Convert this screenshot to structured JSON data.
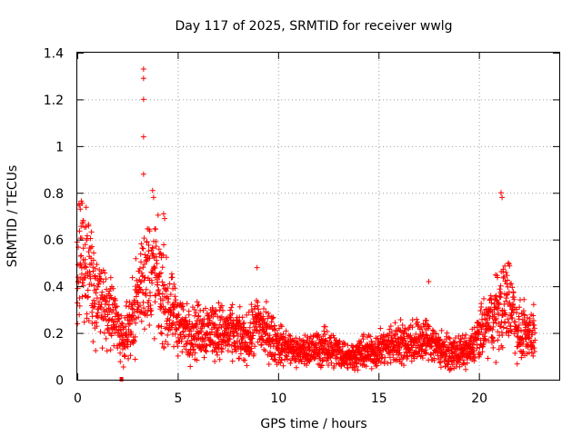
{
  "chart_data": {
    "type": "scatter",
    "title": "Day 117 of 2025, SRMTID for receiver wwlg",
    "xlabel": "GPS time / hours",
    "ylabel": "SRMTID / TECUs",
    "xlim": [
      0,
      24
    ],
    "ylim": [
      0,
      1.4
    ],
    "xticks": [
      "0",
      "5",
      "10",
      "15",
      "20"
    ],
    "yticks": [
      "0",
      "0.2",
      "0.4",
      "0.6",
      "0.8",
      "1",
      "1.2",
      "1.4"
    ],
    "grid": true,
    "marker": "+",
    "color": "#ff0000",
    "outlier_marker": {
      "x": 2.2,
      "y": 0.0
    },
    "peaks": [
      {
        "x": 3.3,
        "y": 1.33
      },
      {
        "x": 3.3,
        "y": 1.29
      },
      {
        "x": 3.3,
        "y": 1.2
      },
      {
        "x": 3.3,
        "y": 1.04
      },
      {
        "x": 3.3,
        "y": 0.88
      },
      {
        "x": 3.75,
        "y": 0.81
      },
      {
        "x": 3.8,
        "y": 0.78
      },
      {
        "x": 4.3,
        "y": 0.71
      },
      {
        "x": 4.35,
        "y": 0.69
      },
      {
        "x": 21.1,
        "y": 0.8
      },
      {
        "x": 21.15,
        "y": 0.78
      },
      {
        "x": 0.15,
        "y": 0.73
      },
      {
        "x": 0.3,
        "y": 0.68
      },
      {
        "x": 17.5,
        "y": 0.42
      },
      {
        "x": 8.95,
        "y": 0.48
      }
    ],
    "envelope": [
      {
        "x": 0.0,
        "y": 0.45
      },
      {
        "x": 0.3,
        "y": 0.55
      },
      {
        "x": 0.8,
        "y": 0.38
      },
      {
        "x": 1.5,
        "y": 0.3
      },
      {
        "x": 2.3,
        "y": 0.18
      },
      {
        "x": 2.8,
        "y": 0.28
      },
      {
        "x": 3.3,
        "y": 0.45
      },
      {
        "x": 3.9,
        "y": 0.45
      },
      {
        "x": 4.5,
        "y": 0.3
      },
      {
        "x": 5.5,
        "y": 0.2
      },
      {
        "x": 6.5,
        "y": 0.22
      },
      {
        "x": 7.5,
        "y": 0.2
      },
      {
        "x": 8.5,
        "y": 0.17
      },
      {
        "x": 9.0,
        "y": 0.24
      },
      {
        "x": 10.0,
        "y": 0.15
      },
      {
        "x": 11.0,
        "y": 0.12
      },
      {
        "x": 12.5,
        "y": 0.14
      },
      {
        "x": 13.5,
        "y": 0.1
      },
      {
        "x": 15.0,
        "y": 0.13
      },
      {
        "x": 16.0,
        "y": 0.16
      },
      {
        "x": 17.5,
        "y": 0.17
      },
      {
        "x": 18.5,
        "y": 0.11
      },
      {
        "x": 19.5,
        "y": 0.12
      },
      {
        "x": 20.3,
        "y": 0.22
      },
      {
        "x": 21.0,
        "y": 0.3
      },
      {
        "x": 21.5,
        "y": 0.35
      },
      {
        "x": 22.0,
        "y": 0.2
      },
      {
        "x": 22.8,
        "y": 0.2
      }
    ]
  }
}
